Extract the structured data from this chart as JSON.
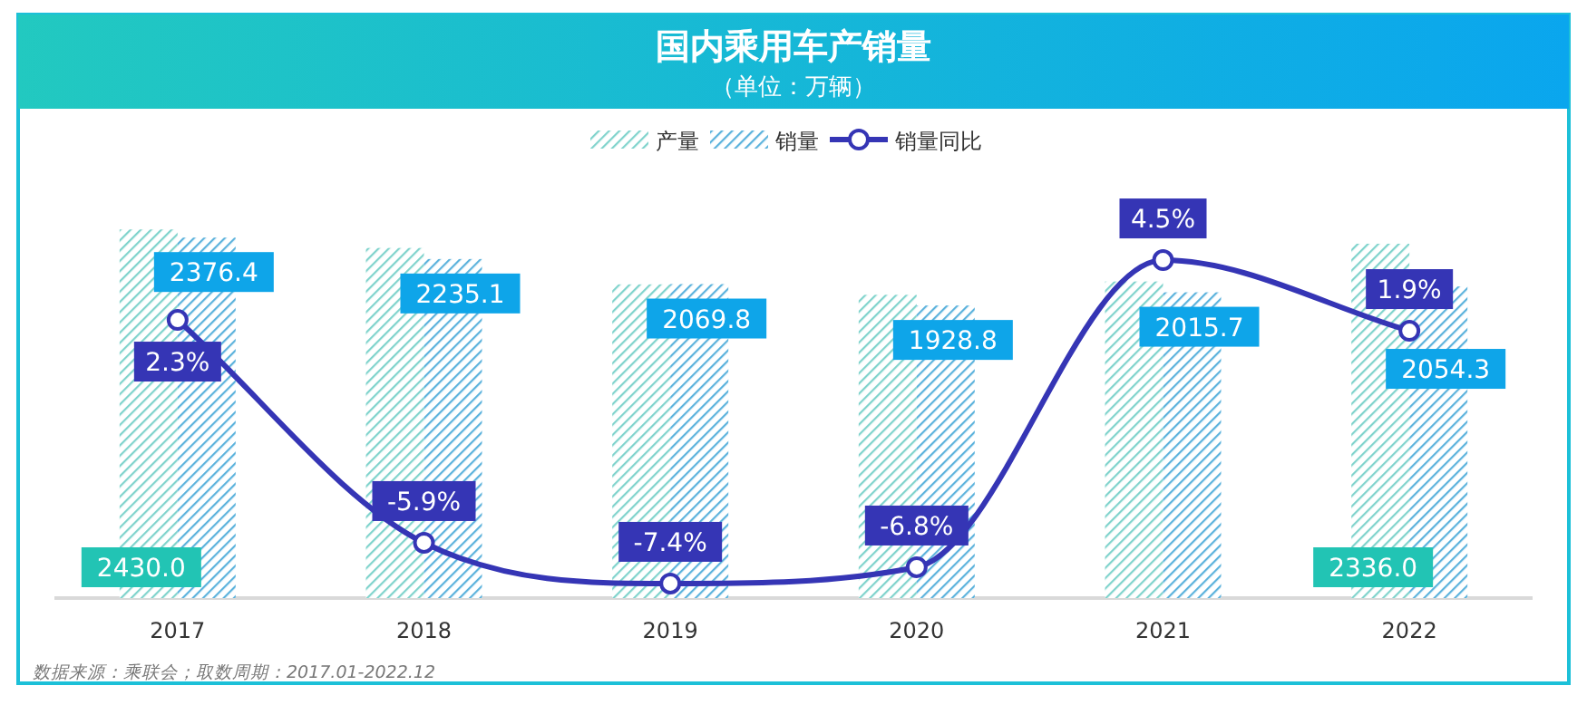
{
  "chart_data": {
    "type": "bar",
    "title": "国内乘用车产销量",
    "subtitle": "（单位：万辆）",
    "categories": [
      "2017",
      "2018",
      "2019",
      "2020",
      "2021",
      "2022"
    ],
    "series": [
      {
        "name": "产量",
        "color": "#7fd3cc",
        "values": [
          2430.0,
          2308,
          2068,
          1999,
          2087,
          2336.0
        ],
        "value_labels": [
          "2430.0",
          null,
          null,
          null,
          null,
          "2336.0"
        ]
      },
      {
        "name": "销量",
        "color": "#5bb2dc",
        "values": [
          2376.4,
          2235.1,
          2069.8,
          1928.8,
          2015.7,
          2054.3
        ],
        "value_labels": [
          "2376.4",
          "2235.1",
          "2069.8",
          "1928.8",
          "2015.7",
          "2054.3"
        ]
      },
      {
        "name": "销量同比",
        "type": "line",
        "axis": "y2",
        "color": "#3535b5",
        "marker": "circle",
        "values": [
          2.3,
          -5.9,
          -7.4,
          -6.8,
          4.5,
          1.9
        ],
        "value_labels": [
          "2.3%",
          "-5.9%",
          "-7.4%",
          "-6.8%",
          "4.5%",
          "1.9%"
        ]
      }
    ],
    "legend": "top",
    "annotations": [
      "数据来源：乘联会；取数周期：2017.01-2022.12"
    ]
  }
}
